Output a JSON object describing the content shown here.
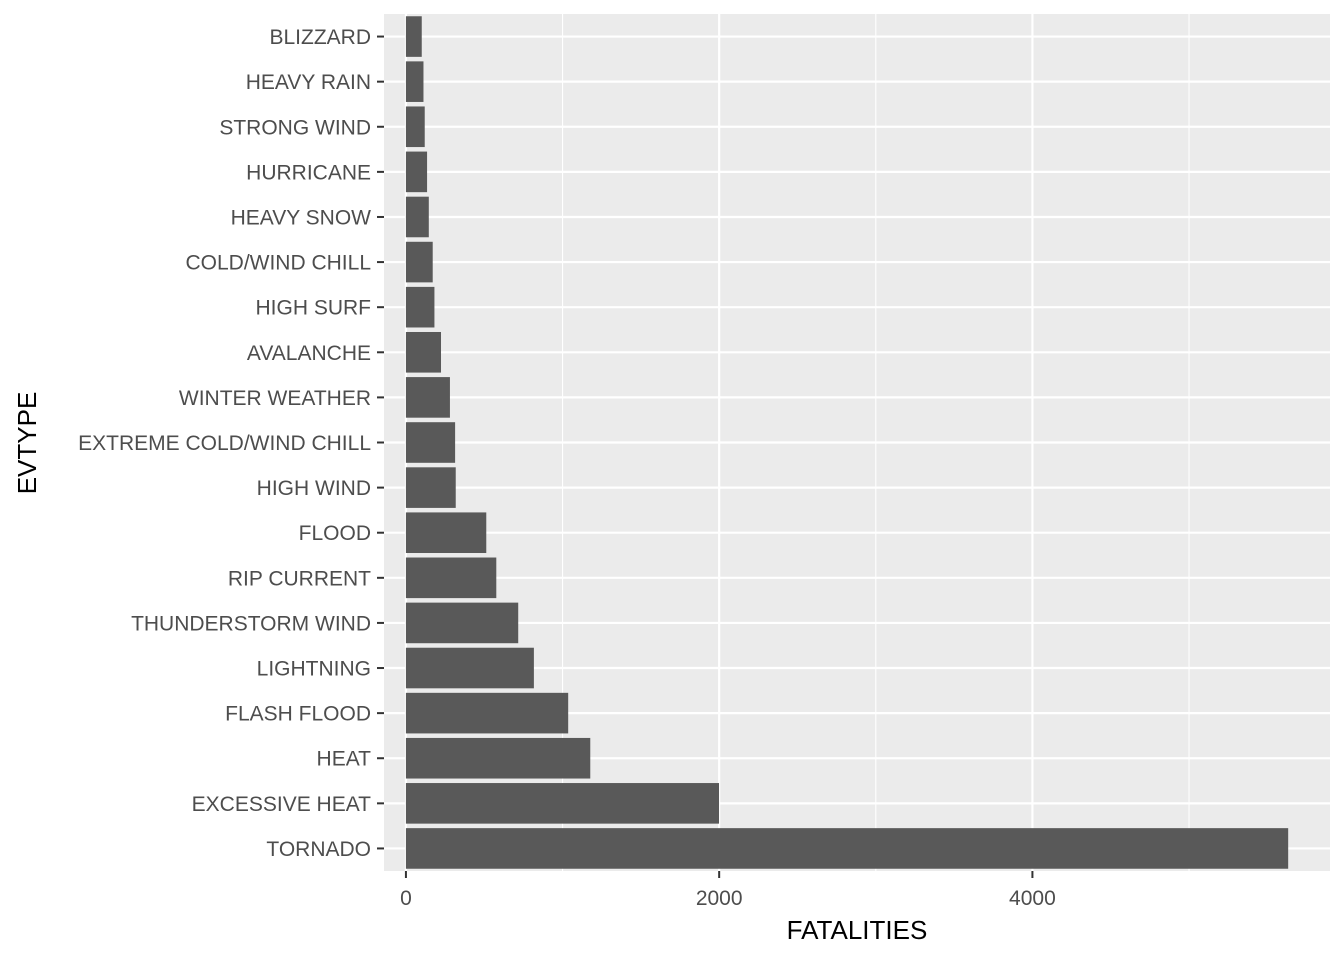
{
  "chart_data": {
    "type": "bar",
    "orientation": "horizontal",
    "xlabel": "FATALITIES",
    "ylabel": "EVTYPE",
    "xlim": [
      -140,
      5900
    ],
    "x_ticks": [
      0,
      2000,
      4000
    ],
    "x_minor_ticks": [
      1000,
      3000,
      5000
    ],
    "grid": true,
    "categories": [
      "TORNADO",
      "EXCESSIVE HEAT",
      "HEAT",
      "FLASH FLOOD",
      "LIGHTNING",
      "THUNDERSTORM WIND",
      "RIP CURRENT",
      "FLOOD",
      "HIGH WIND",
      "EXTREME COLD/WIND CHILL",
      "WINTER WEATHER",
      "AVALANCHE",
      "HIGH SURF",
      "COLD/WIND CHILL",
      "HEAVY SNOW",
      "HURRICANE",
      "STRONG WIND",
      "HEAVY RAIN",
      "BLIZZARD"
    ],
    "values": [
      5633,
      1999,
      1177,
      1036,
      817,
      717,
      577,
      513,
      318,
      314,
      281,
      224,
      182,
      171,
      146,
      135,
      120,
      112,
      101
    ],
    "colors": {
      "panel_background": "#ebebeb",
      "grid_major": "#ffffff",
      "bar_fill": "#595959",
      "tick_label": "#4d4d4d",
      "axis_tick": "#333333",
      "axis_title": "#000000"
    }
  }
}
